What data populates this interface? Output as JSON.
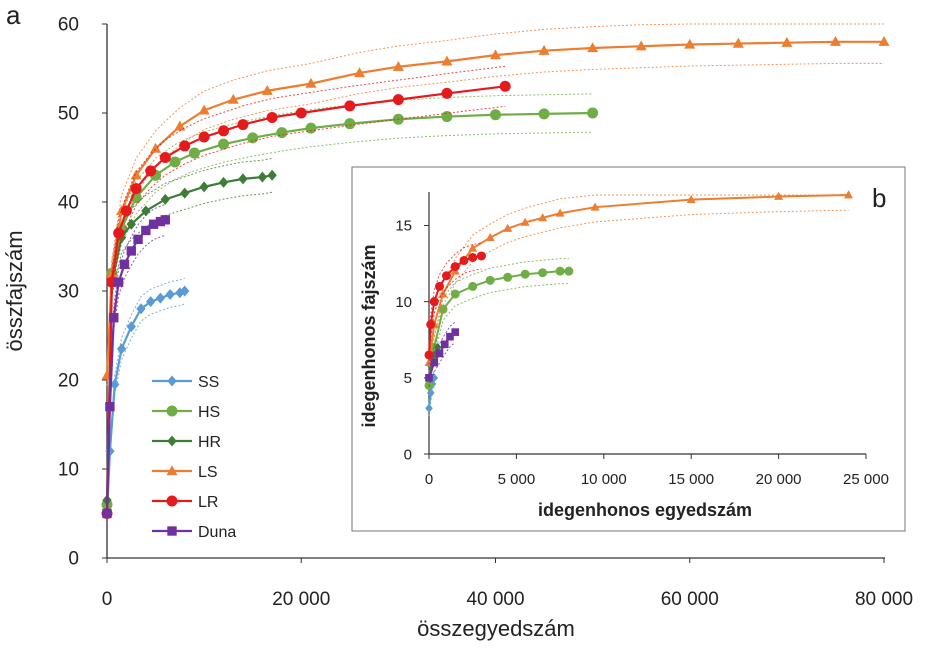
{
  "chart_data": [
    {
      "panel": "a",
      "type": "line",
      "xlabel": "összegyedszám",
      "ylabel": "összfajszám",
      "xlim": [
        0,
        80000
      ],
      "ylim": [
        0,
        60
      ],
      "x_ticks": [
        "0",
        "20 000",
        "40 000",
        "60 000",
        "80 000"
      ],
      "y_ticks": [
        "0",
        "10",
        "20",
        "30",
        "40",
        "50",
        "60"
      ],
      "grid": false,
      "legend_position": "bottom-left",
      "series": [
        {
          "name": "SS",
          "color": "#5b9bd5",
          "marker": "diamond",
          "x": [
            0,
            300,
            800,
            1500,
            2500,
            3500,
            4500,
            5500,
            6500,
            7500,
            8000
          ],
          "y": [
            5,
            12,
            19.5,
            23.5,
            26,
            28,
            28.8,
            29.2,
            29.6,
            29.8,
            30
          ]
        },
        {
          "name": "HS",
          "color": "#70ad47",
          "marker": "circle",
          "x": [
            0,
            500,
            1500,
            3000,
            5000,
            7000,
            9000,
            12000,
            15000,
            18000,
            21000,
            25000,
            30000,
            35000,
            40000,
            45000,
            50000
          ],
          "y": [
            6,
            32,
            37,
            40.5,
            43,
            44.5,
            45.5,
            46.5,
            47.2,
            47.8,
            48.3,
            48.8,
            49.3,
            49.6,
            49.8,
            49.9,
            50
          ]
        },
        {
          "name": "HR",
          "color": "#3e7d37",
          "marker": "diamond",
          "x": [
            0,
            500,
            1500,
            2500,
            4000,
            6000,
            8000,
            10000,
            12000,
            14000,
            16000,
            17000
          ],
          "y": [
            6.5,
            31,
            36,
            37.5,
            39,
            40.3,
            41,
            41.7,
            42.2,
            42.6,
            42.8,
            43
          ]
        },
        {
          "name": "LS",
          "color": "#ed7d31",
          "marker": "triangle",
          "x": [
            0,
            500,
            1500,
            3000,
            5000,
            7500,
            10000,
            13000,
            16500,
            21000,
            26000,
            30000,
            35000,
            40000,
            45000,
            50000,
            55000,
            60000,
            65000,
            70000,
            75000,
            80000
          ],
          "y": [
            20.5,
            32,
            39,
            43,
            46,
            48.5,
            50.3,
            51.5,
            52.5,
            53.3,
            54.5,
            55.2,
            55.8,
            56.5,
            57,
            57.3,
            57.5,
            57.7,
            57.8,
            57.9,
            58,
            58
          ]
        },
        {
          "name": "LR",
          "color": "#e41a1c",
          "marker": "circle",
          "x": [
            0,
            500,
            1200,
            2000,
            3000,
            4500,
            6000,
            8000,
            10000,
            12000,
            14000,
            17000,
            20000,
            25000,
            30000,
            35000,
            41000
          ],
          "y": [
            5,
            31,
            36.5,
            39,
            41.5,
            43.5,
            45,
            46.3,
            47.3,
            48,
            48.7,
            49.5,
            50,
            50.8,
            51.5,
            52.2,
            53
          ]
        },
        {
          "name": "Duna",
          "color": "#7030a0",
          "marker": "square",
          "x": [
            0,
            300,
            700,
            1200,
            1800,
            2500,
            3200,
            4000,
            4800,
            5500,
            6000
          ],
          "y": [
            5,
            17,
            27,
            31,
            33,
            34.5,
            35.8,
            36.8,
            37.5,
            37.8,
            38
          ]
        }
      ]
    },
    {
      "panel": "b",
      "type": "line",
      "xlabel": "idegenhonos egyedszám",
      "ylabel": "idegenhonos fajszám",
      "xlim": [
        0,
        25000
      ],
      "ylim": [
        0,
        17
      ],
      "x_ticks": [
        "0",
        "5 000",
        "10 000",
        "15 000",
        "20 000",
        "25 000"
      ],
      "y_ticks": [
        "0",
        "5",
        "10",
        "15"
      ],
      "grid": false,
      "series": [
        {
          "name": "SS",
          "color": "#5b9bd5",
          "marker": "diamond",
          "x": [
            0,
            100,
            200,
            300
          ],
          "y": [
            3,
            4,
            4.6,
            5
          ]
        },
        {
          "name": "HS",
          "color": "#70ad47",
          "marker": "circle",
          "x": [
            0,
            300,
            800,
            1500,
            2500,
            3500,
            4500,
            5500,
            6500,
            7500,
            8000
          ],
          "y": [
            4.5,
            7,
            9.5,
            10.5,
            11,
            11.4,
            11.6,
            11.8,
            11.9,
            12,
            12
          ]
        },
        {
          "name": "HR",
          "color": "#3e7d37",
          "marker": "diamond",
          "x": [
            0,
            100,
            300,
            500
          ],
          "y": [
            5,
            5.8,
            6.5,
            7
          ]
        },
        {
          "name": "LS",
          "color": "#ed7d31",
          "marker": "triangle",
          "x": [
            0,
            300,
            800,
            1500,
            2500,
            3500,
            4500,
            5500,
            6500,
            7500,
            9500,
            15000,
            20000,
            24000
          ],
          "y": [
            6,
            8.5,
            10.5,
            12,
            13.5,
            14.2,
            14.8,
            15.2,
            15.5,
            15.8,
            16.2,
            16.7,
            16.9,
            17
          ]
        },
        {
          "name": "LR",
          "color": "#e41a1c",
          "marker": "circle",
          "x": [
            0,
            100,
            300,
            600,
            1000,
            1500,
            2000,
            2500,
            3000
          ],
          "y": [
            6.5,
            8.5,
            10,
            11,
            11.7,
            12.3,
            12.7,
            12.9,
            13
          ]
        },
        {
          "name": "Duna",
          "color": "#7030a0",
          "marker": "square",
          "x": [
            0,
            300,
            600,
            900,
            1200,
            1500
          ],
          "y": [
            5,
            6,
            6.6,
            7.2,
            7.7,
            8
          ]
        }
      ]
    }
  ]
}
